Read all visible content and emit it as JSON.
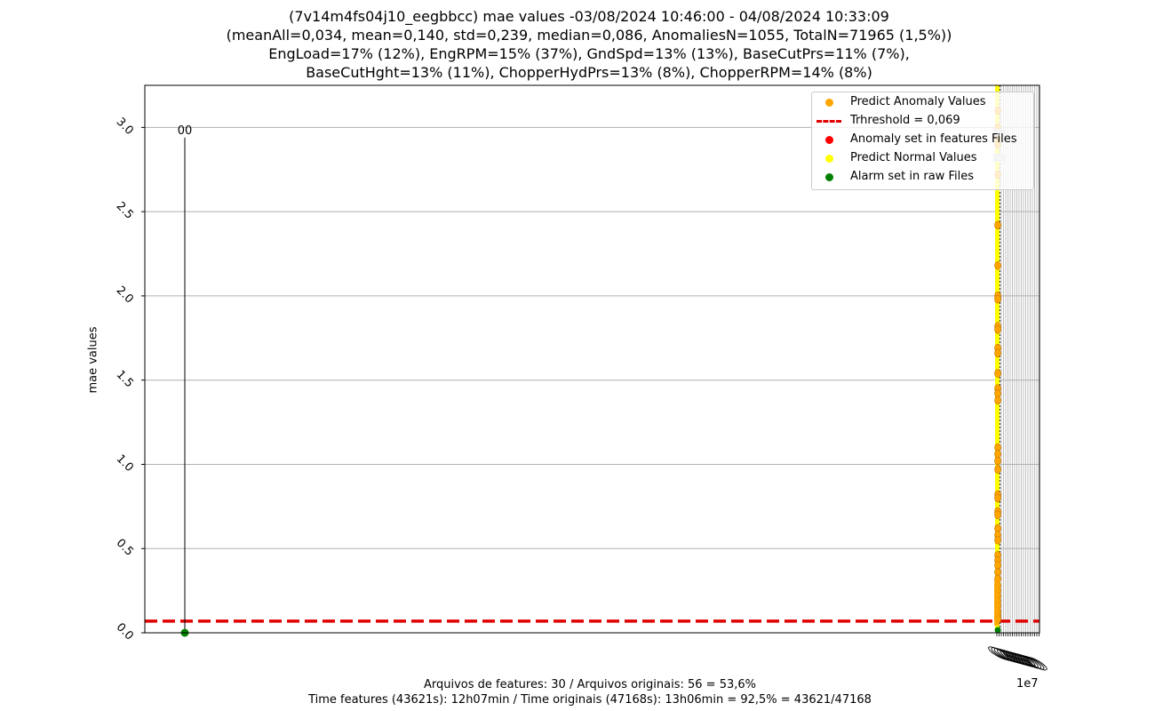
{
  "title": {
    "line1": "(7v14m4fs04j10_eegbbcc) mae values -03/08/2024 10:46:00 - 04/08/2024 10:33:09",
    "line2": "(meanAll=0,034, mean=0,140, std=0,239, median=0,086, AnomaliesN=1055, TotalN=71965 (1,5%))",
    "line3": "EngLoad=17% (12%), EngRPM=15% (37%), GndSpd=13% (13%), BaseCutPrs=11% (7%),",
    "line4": "BaseCutHght=13% (11%), ChopperHydPrs=13% (8%), ChopperRPM=14% (8%)"
  },
  "footer": {
    "line1": "Arquivos de features: 30 / Arquivos originais: 56 = 53,6%",
    "line2": "Time features (43621s): 12h07min / Time originais (47168s): 13h06min = 92,5% = 43621/47168"
  },
  "chart_data": {
    "type": "scatter",
    "ylabel": "mae values",
    "xlabel": "",
    "x_scale_label": "1e7",
    "ylim": [
      0,
      3.25
    ],
    "yticks": [
      "0.0",
      "0.5",
      "1.0",
      "1.5",
      "2.0",
      "2.5",
      "3.0"
    ],
    "grid": "horizontal",
    "legend_position": "top-right",
    "threshold": 0.069,
    "legend": [
      {
        "label": "Predict Anomaly Values",
        "color": "#ffa500",
        "kind": "dot"
      },
      {
        "label": "Trhreshold = 0,069",
        "color": "#e00000",
        "kind": "dashed-line"
      },
      {
        "label": "Anomaly set in features Files",
        "color": "#ff0000",
        "kind": "dot"
      },
      {
        "label": "Predict Normal Values",
        "color": "#ffff00",
        "kind": "dot"
      },
      {
        "label": "Alarm set in raw Files",
        "color": "#008000",
        "kind": "dot"
      }
    ],
    "annotation": {
      "text": "00",
      "y": 2.94
    },
    "alarm_point": {
      "y": 0.0
    },
    "anomaly_values": [
      3.1,
      3.0,
      2.95,
      2.9,
      2.72,
      2.42,
      2.18,
      2.0,
      1.98,
      1.82,
      1.8,
      1.69,
      1.66,
      1.54,
      1.45,
      1.42,
      1.38,
      1.1,
      1.06,
      1.02,
      0.97,
      0.82,
      0.8,
      0.72,
      0.7,
      0.62,
      0.58,
      0.55,
      0.46,
      0.43,
      0.4,
      0.36,
      0.32,
      0.28,
      0.25,
      0.22,
      0.19,
      0.16,
      0.13,
      0.11,
      0.09,
      0.08
    ]
  }
}
